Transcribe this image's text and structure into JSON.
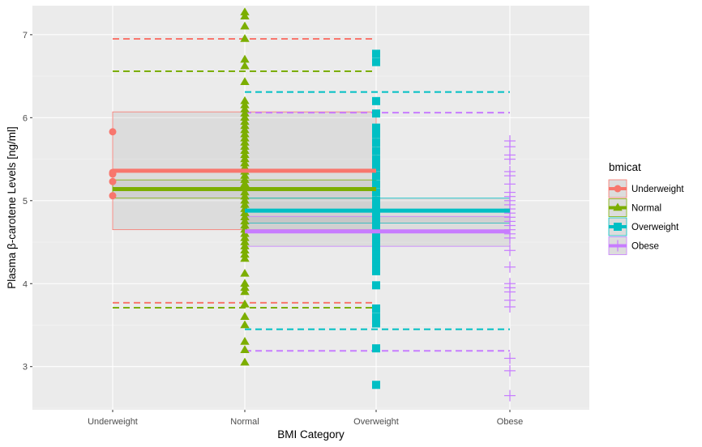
{
  "chart_data": {
    "type": "scatter",
    "title": "",
    "xlabel": "BMI Category",
    "ylabel": "Plasma β-carotene Levels [ng/ml]",
    "categories": [
      "Underweight",
      "Normal",
      "Overweight",
      "Obese"
    ],
    "yticks": [
      3,
      4,
      5,
      6,
      7
    ],
    "ylim": [
      2.48,
      7.35
    ],
    "grid": true,
    "legend": {
      "title": "bmicat",
      "position": "right"
    },
    "series": [
      {
        "name": "Underweight",
        "color": "#F8766D",
        "shape": "circle",
        "category": "Underweight",
        "points": [
          5.83,
          5.34,
          5.32,
          5.23,
          5.06
        ],
        "mean": 5.36,
        "ci": [
          4.65,
          6.07
        ],
        "pi": [
          3.77,
          6.95
        ],
        "x_extent": [
          "Underweight",
          "Overweight"
        ]
      },
      {
        "name": "Normal",
        "color": "#7CAE00",
        "shape": "triangle",
        "category": "Normal",
        "points": [
          7.27,
          7.22,
          7.1,
          6.95,
          6.7,
          6.62,
          6.43,
          6.2,
          6.15,
          6.1,
          6.05,
          6.0,
          5.95,
          5.9,
          5.85,
          5.8,
          5.75,
          5.7,
          5.65,
          5.6,
          5.55,
          5.5,
          5.45,
          5.4,
          5.35,
          5.3,
          5.25,
          5.2,
          5.15,
          5.1,
          5.05,
          5.0,
          4.95,
          4.9,
          4.85,
          4.8,
          4.75,
          4.7,
          4.65,
          4.6,
          4.55,
          4.5,
          4.45,
          4.4,
          4.35,
          4.3,
          4.12,
          4.0,
          3.95,
          3.9,
          3.75,
          3.6,
          3.5,
          3.3,
          3.2,
          3.05
        ],
        "mean": 5.14,
        "ci": [
          5.03,
          5.25
        ],
        "pi": [
          3.71,
          6.56
        ],
        "x_extent": [
          "Underweight",
          "Overweight"
        ]
      },
      {
        "name": "Overweight",
        "color": "#00BFC4",
        "shape": "square",
        "category": "Overweight",
        "points": [
          6.77,
          6.67,
          6.2,
          6.05,
          5.88,
          5.8,
          5.7,
          5.6,
          5.5,
          5.45,
          5.4,
          5.3,
          5.2,
          5.1,
          5.0,
          4.95,
          4.9,
          4.85,
          4.8,
          4.75,
          4.7,
          4.65,
          4.6,
          4.55,
          4.5,
          4.45,
          4.4,
          4.35,
          4.3,
          4.25,
          4.2,
          4.15,
          3.98,
          3.7,
          3.6,
          3.52,
          3.22,
          2.78
        ],
        "mean": 4.88,
        "ci": [
          4.73,
          5.03
        ],
        "pi": [
          3.45,
          6.31
        ],
        "x_extent": [
          "Normal",
          "Obese"
        ]
      },
      {
        "name": "Obese",
        "color": "#C77CFF",
        "shape": "cross",
        "category": "Obese",
        "points": [
          5.72,
          5.65,
          5.55,
          5.5,
          5.35,
          5.3,
          5.2,
          5.1,
          5.05,
          5.0,
          4.95,
          4.9,
          4.85,
          4.8,
          4.75,
          4.7,
          4.65,
          4.6,
          4.55,
          4.4,
          4.2,
          4.0,
          3.95,
          3.9,
          3.8,
          3.72,
          3.1,
          2.95,
          2.65
        ],
        "mean": 4.63,
        "ci": [
          4.45,
          4.81
        ],
        "pi": [
          3.19,
          6.06
        ],
        "x_extent": [
          "Normal",
          "Obese"
        ]
      }
    ]
  }
}
